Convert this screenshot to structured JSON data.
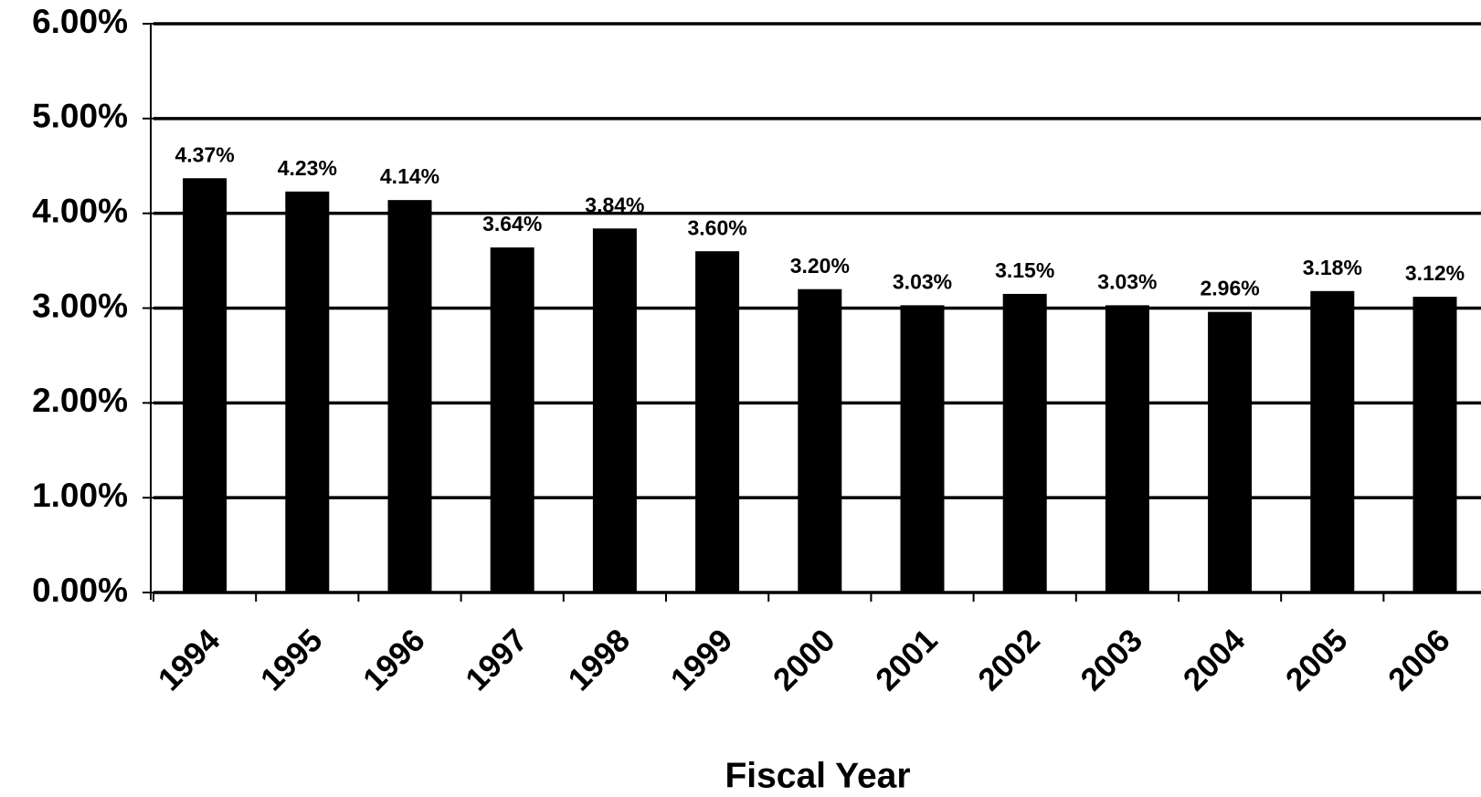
{
  "chart_data": {
    "type": "bar",
    "x_label": "Fiscal Year",
    "categories": [
      "1994",
      "1995",
      "1996",
      "1997",
      "1998",
      "1999",
      "2000",
      "2001",
      "2002",
      "2003",
      "2004",
      "2005",
      "2006"
    ],
    "values": [
      4.37,
      4.23,
      4.14,
      3.64,
      3.84,
      3.6,
      3.2,
      3.03,
      3.15,
      3.03,
      2.96,
      3.18,
      3.12
    ],
    "value_labels": [
      "4.37%",
      "4.23%",
      "4.14%",
      "3.64%",
      "3.84%",
      "3.60%",
      "3.20%",
      "3.03%",
      "3.15%",
      "3.03%",
      "2.96%",
      "3.18%",
      "3.12%"
    ],
    "color": "#000000",
    "ylim": [
      0,
      6
    ],
    "yticks": [
      {
        "value": 0,
        "label": "0.00%"
      },
      {
        "value": 1,
        "label": "1.00%"
      },
      {
        "value": 2,
        "label": "2.00%"
      },
      {
        "value": 3,
        "label": "3.00%"
      },
      {
        "value": 4,
        "label": "4.00%"
      },
      {
        "value": 5,
        "label": "5.00%"
      },
      {
        "value": 6,
        "label": "6.00%"
      }
    ],
    "grid": true
  }
}
